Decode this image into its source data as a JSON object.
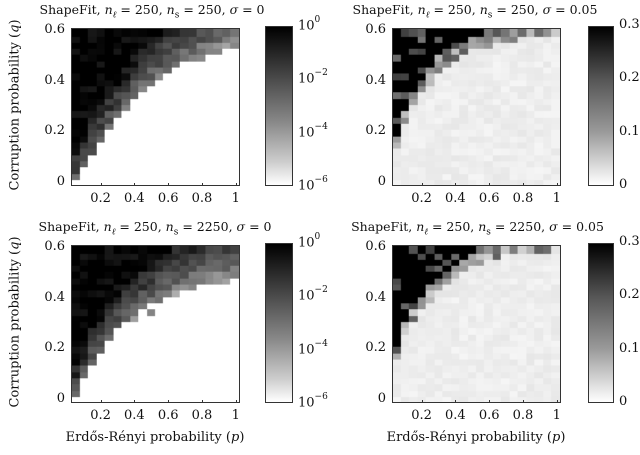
{
  "chart_data": [
    {
      "type": "heatmap",
      "title": "ShapeFit, n_ℓ = 250, n_s = 250, σ = 0",
      "title_parts": {
        "prefix": "ShapeFit, ",
        "nl": "250",
        "ns": "250",
        "sigma": "0"
      },
      "xlabel": "",
      "ylabel": "Corruption probability (q)",
      "x_ticks": [
        "0.2",
        "0.4",
        "0.6",
        "0.8",
        "1"
      ],
      "y_ticks": [
        "0",
        "0.2",
        "0.4",
        "0.6"
      ],
      "x": [
        0.05,
        0.1,
        0.15,
        0.2,
        0.25,
        0.3,
        0.35,
        0.4,
        0.45,
        0.5,
        0.55,
        0.6,
        0.65,
        0.7,
        0.75,
        0.8,
        0.85,
        0.9,
        0.95,
        1.0
      ],
      "y_range": [
        0,
        0.6
      ],
      "y_steps": 25,
      "colorbar": {
        "scale": "log",
        "range": [
          1e-06,
          1
        ],
        "ticks": [
          {
            "base": "10",
            "exp": "0"
          },
          {
            "base": "10",
            "exp": "−2"
          },
          {
            "base": "10",
            "exp": "−4"
          },
          {
            "base": "10",
            "exp": "−6"
          }
        ]
      },
      "boundary": [
        0.02,
        0.07,
        0.12,
        0.17,
        0.22,
        0.26,
        0.3,
        0.34,
        0.37,
        0.4,
        0.42,
        0.44,
        0.46,
        0.48,
        0.49,
        0.5,
        0.51,
        0.52,
        0.54,
        0.55
      ],
      "darkness_scale": 1.0,
      "white_fill": true
    },
    {
      "type": "heatmap",
      "title": "ShapeFit, n_ℓ = 250, n_s = 250, σ = 0.05",
      "title_parts": {
        "prefix": "ShapeFit, ",
        "nl": "250",
        "ns": "250",
        "sigma": "0.05"
      },
      "xlabel": "",
      "ylabel": "",
      "x_ticks": [
        "0.2",
        "0.4",
        "0.6",
        "0.8",
        "1"
      ],
      "y_ticks": [
        "0",
        "0.2",
        "0.4",
        "0.6"
      ],
      "x": [
        0.05,
        0.1,
        0.15,
        0.2,
        0.25,
        0.3,
        0.35,
        0.4,
        0.45,
        0.5,
        0.55,
        0.6,
        0.65,
        0.7,
        0.75,
        0.8,
        0.85,
        0.9,
        0.95,
        1.0
      ],
      "y_range": [
        0,
        0.6
      ],
      "y_steps": 25,
      "colorbar": {
        "scale": "linear",
        "range": [
          0,
          0.3
        ],
        "ticks": [
          {
            "base": "0.3",
            "exp": ""
          },
          {
            "base": "0.2",
            "exp": ""
          },
          {
            "base": "0.1",
            "exp": ""
          },
          {
            "base": "0",
            "exp": ""
          }
        ]
      },
      "boundary": [
        0.15,
        0.25,
        0.33,
        0.38,
        0.42,
        0.46,
        0.49,
        0.51,
        0.53,
        0.55,
        0.56,
        0.57,
        0.58,
        0.59,
        0.59,
        0.6,
        0.6,
        0.61,
        0.61,
        0.62
      ],
      "darkness_scale": 1.0,
      "white_fill": false
    },
    {
      "type": "heatmap",
      "title": "ShapeFit, n_ℓ = 250, n_s = 2250, σ = 0",
      "title_parts": {
        "prefix": "ShapeFit, ",
        "nl": "250",
        "ns": "2250",
        "sigma": "0"
      },
      "xlabel": "Erdős-Rényi probability (p)",
      "ylabel": "Corruption probability (q)",
      "x_ticks": [
        "0.2",
        "0.4",
        "0.6",
        "0.8",
        "1"
      ],
      "y_ticks": [
        "0",
        "0.2",
        "0.4",
        "0.6"
      ],
      "x": [
        0.05,
        0.1,
        0.15,
        0.2,
        0.25,
        0.3,
        0.35,
        0.4,
        0.45,
        0.5,
        0.55,
        0.6,
        0.65,
        0.7,
        0.75,
        0.8,
        0.85,
        0.9,
        0.95,
        1.0
      ],
      "y_range": [
        0,
        0.6
      ],
      "y_steps": 25,
      "colorbar": {
        "scale": "log",
        "range": [
          1e-06,
          1
        ],
        "ticks": [
          {
            "base": "10",
            "exp": "0"
          },
          {
            "base": "10",
            "exp": "−2"
          },
          {
            "base": "10",
            "exp": "−4"
          },
          {
            "base": "10",
            "exp": "−6"
          }
        ]
      },
      "boundary": [
        0.02,
        0.09,
        0.15,
        0.2,
        0.24,
        0.28,
        0.31,
        0.34,
        0.36,
        0.38,
        0.4,
        0.42,
        0.43,
        0.44,
        0.45,
        0.46,
        0.46,
        0.47,
        0.47,
        0.48
      ],
      "darkness_scale": 1.0,
      "white_fill": true
    },
    {
      "type": "heatmap",
      "title": "ShapeFit, n_ℓ = 250, n_s = 2250, σ = 0.05",
      "title_parts": {
        "prefix": "ShapeFit, ",
        "nl": "250",
        "ns": "2250",
        "sigma": "0.05"
      },
      "xlabel": "Erdős-Rényi probability (p)",
      "ylabel": "",
      "x_ticks": [
        "0.2",
        "0.4",
        "0.6",
        "0.8",
        "1"
      ],
      "y_ticks": [
        "0",
        "0.2",
        "0.4",
        "0.6"
      ],
      "x": [
        0.05,
        0.1,
        0.15,
        0.2,
        0.25,
        0.3,
        0.35,
        0.4,
        0.45,
        0.5,
        0.55,
        0.6,
        0.65,
        0.7,
        0.75,
        0.8,
        0.85,
        0.9,
        0.95,
        1.0
      ],
      "y_range": [
        0,
        0.6
      ],
      "y_steps": 25,
      "colorbar": {
        "scale": "linear",
        "range": [
          0,
          0.3
        ],
        "ticks": [
          {
            "base": "0.3",
            "exp": ""
          },
          {
            "base": "0.2",
            "exp": ""
          },
          {
            "base": "0.1",
            "exp": ""
          },
          {
            "base": "0",
            "exp": ""
          }
        ]
      },
      "boundary": [
        0.18,
        0.27,
        0.33,
        0.38,
        0.42,
        0.45,
        0.48,
        0.51,
        0.53,
        0.55,
        0.57,
        0.58,
        0.59,
        0.6,
        0.6,
        0.61,
        0.61,
        0.62,
        0.62,
        0.63
      ],
      "darkness_scale": 1.0,
      "white_fill": false
    }
  ],
  "labels": {
    "ylabel": "Corruption probability (q)",
    "ylabel_text": "Corruption probability ",
    "ylabel_var": "q",
    "xlabel_text": "Erdős-Rényi probability ",
    "xlabel_var": "p"
  }
}
